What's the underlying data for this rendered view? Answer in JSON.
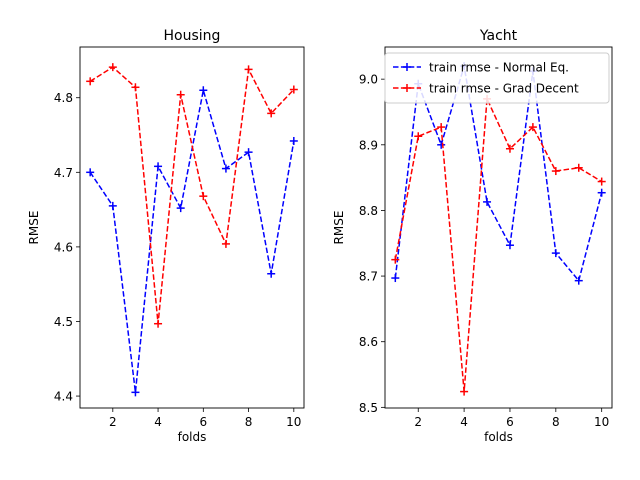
{
  "chart_data": [
    {
      "type": "line",
      "title": "Housing",
      "xlabel": "folds",
      "ylabel": "RMSE",
      "xlim": [
        0.55,
        10.45
      ],
      "ylim": [
        4.384,
        4.868
      ],
      "xticks": [
        2,
        4,
        6,
        8,
        10
      ],
      "xtick_labels": [
        "2",
        "4",
        "6",
        "8",
        "10"
      ],
      "yticks": [
        4.4,
        4.5,
        4.6,
        4.7,
        4.8
      ],
      "ytick_labels": [
        "4.4",
        "4.5",
        "4.6",
        "4.7",
        "4.8"
      ],
      "legend": null,
      "grid": false,
      "series": [
        {
          "color": "#0000ff",
          "marker": "+",
          "linestyle": "dashed",
          "x": [
            1,
            2,
            3,
            4,
            5,
            6,
            7,
            8,
            9,
            10
          ],
          "values": [
            4.7,
            4.655,
            4.405,
            4.708,
            4.652,
            4.81,
            4.705,
            4.727,
            4.564,
            4.742
          ]
        },
        {
          "color": "#ff0000",
          "marker": "+",
          "linestyle": "dashed",
          "x": [
            1,
            2,
            3,
            4,
            5,
            6,
            7,
            8,
            9,
            10
          ],
          "values": [
            4.822,
            4.841,
            4.814,
            4.497,
            4.804,
            4.668,
            4.604,
            4.838,
            4.779,
            4.811
          ]
        }
      ]
    },
    {
      "type": "line",
      "title": "Yacht",
      "xlabel": "folds",
      "ylabel": "RMSE",
      "xlim": [
        0.55,
        10.45
      ],
      "ylim": [
        8.499,
        9.049
      ],
      "xticks": [
        2,
        4,
        6,
        8,
        10
      ],
      "xtick_labels": [
        "2",
        "4",
        "6",
        "8",
        "10"
      ],
      "yticks": [
        8.5,
        8.6,
        8.7,
        8.8,
        8.9,
        9.0
      ],
      "ytick_labels": [
        "8.5",
        "8.6",
        "8.7",
        "8.8",
        "8.9",
        "9.0"
      ],
      "legend": "top-right",
      "grid": false,
      "series": [
        {
          "name": "train rmse - Normal Eq.",
          "color": "#0000ff",
          "marker": "+",
          "linestyle": "dashed",
          "x": [
            1,
            2,
            3,
            4,
            5,
            6,
            7,
            8,
            9,
            10
          ],
          "values": [
            8.697,
            8.993,
            8.9,
            9.02,
            8.813,
            8.747,
            9.012,
            8.735,
            8.693,
            8.827
          ]
        },
        {
          "name": "train rmse - Grad Decent",
          "color": "#ff0000",
          "marker": "+",
          "linestyle": "dashed",
          "x": [
            1,
            2,
            3,
            4,
            5,
            6,
            7,
            8,
            9,
            10
          ],
          "values": [
            8.725,
            8.913,
            8.927,
            8.524,
            8.97,
            8.894,
            8.927,
            8.86,
            8.865,
            8.844
          ]
        }
      ]
    }
  ]
}
